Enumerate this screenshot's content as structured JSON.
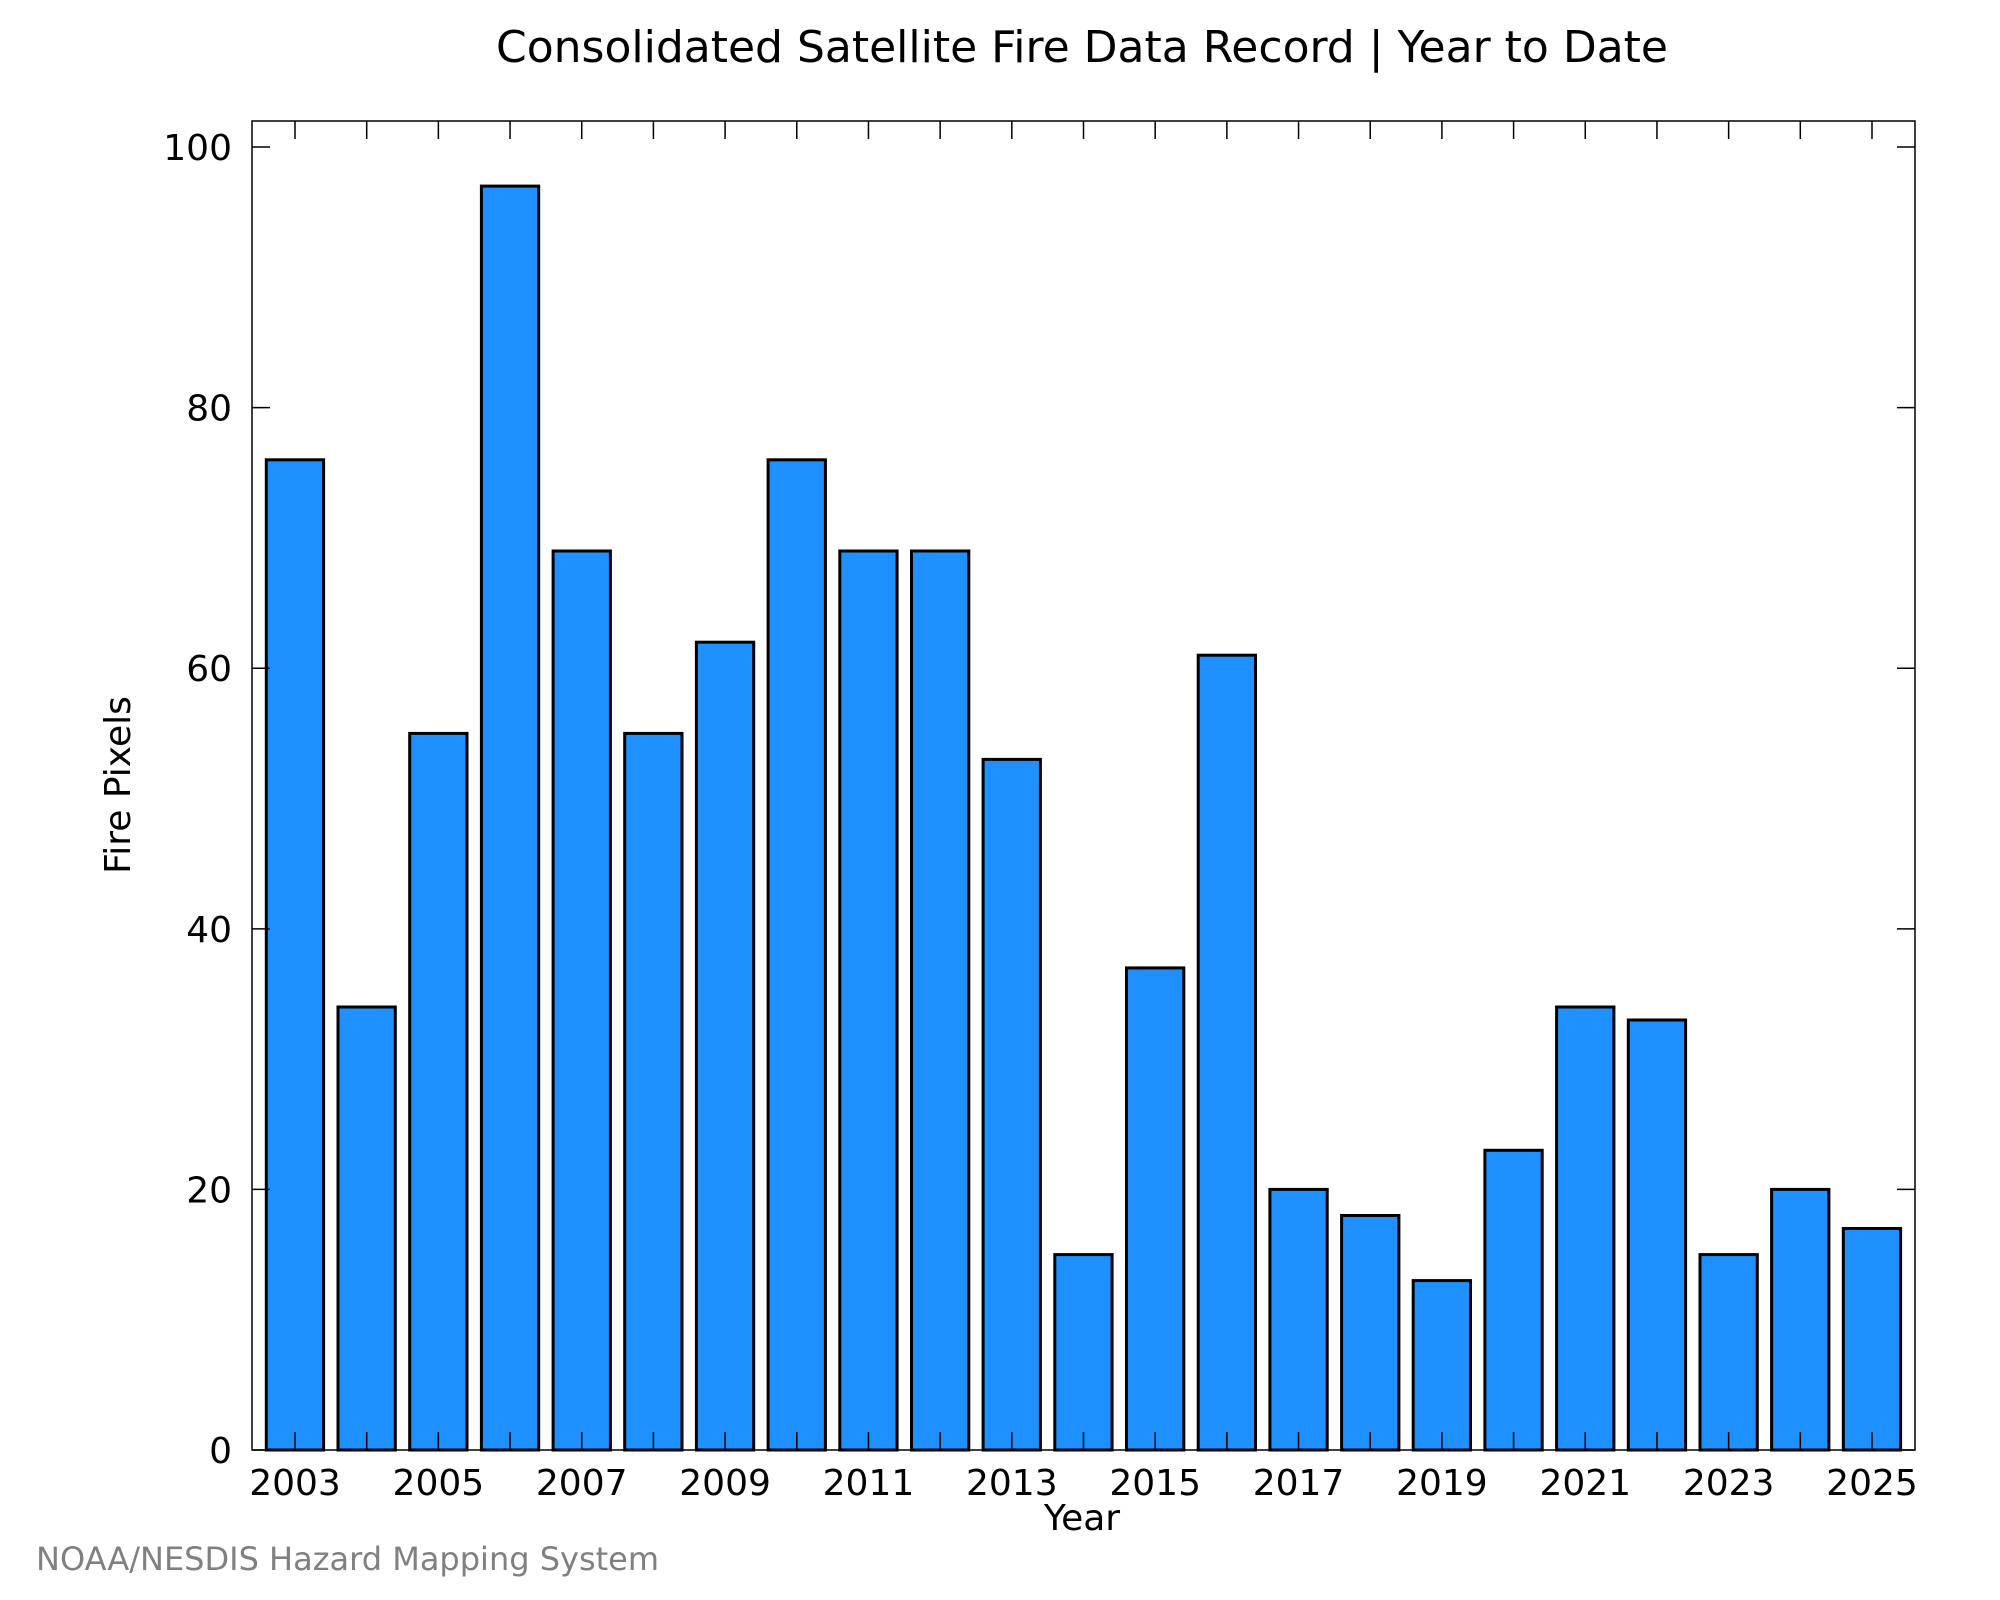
{
  "credit": "NOAA/NESDIS Hazard Mapping System",
  "chart_data": {
    "type": "bar",
    "title": "Consolidated Satellite Fire Data Record | Year to Date",
    "xlabel": "Year",
    "ylabel": "Fire Pixels",
    "categories": [
      "2003",
      "2004",
      "2005",
      "2006",
      "2007",
      "2008",
      "2009",
      "2010",
      "2011",
      "2012",
      "2013",
      "2014",
      "2015",
      "2016",
      "2017",
      "2018",
      "2019",
      "2020",
      "2021",
      "2022",
      "2023",
      "2024",
      "2025"
    ],
    "values": [
      76,
      34,
      55,
      97,
      69,
      55,
      62,
      76,
      69,
      69,
      53,
      15,
      37,
      61,
      20,
      18,
      13,
      23,
      34,
      33,
      15,
      20,
      17
    ],
    "xtick_labels": [
      "2003",
      "2005",
      "2007",
      "2009",
      "2011",
      "2013",
      "2015",
      "2017",
      "2019",
      "2021",
      "2023",
      "2025"
    ],
    "ytick_labels": [
      "0",
      "20",
      "40",
      "60",
      "80",
      "100"
    ],
    "yticks": [
      0,
      20,
      40,
      60,
      80,
      100
    ],
    "ylim": [
      0,
      102
    ],
    "bar_color": "#1e90ff",
    "grid": false,
    "legend": "none"
  }
}
